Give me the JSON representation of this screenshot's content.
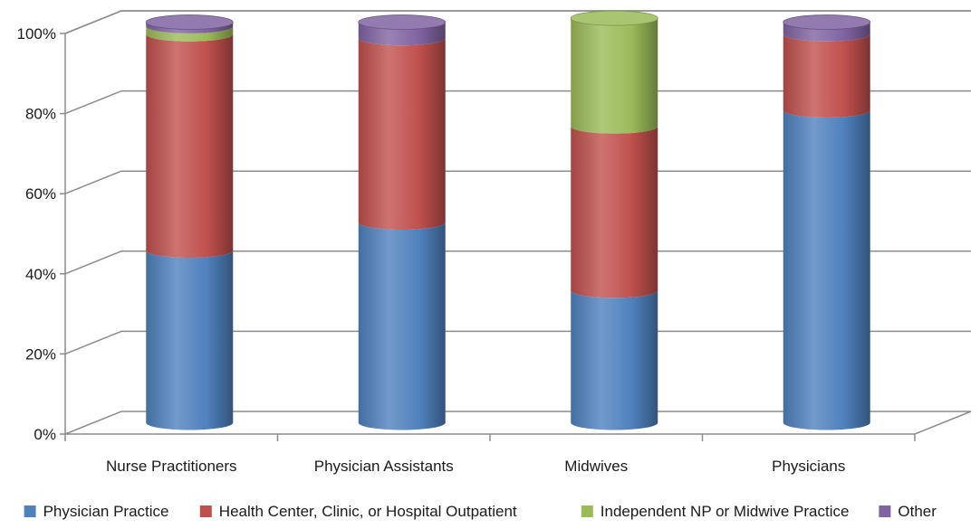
{
  "chart_data": {
    "type": "bar",
    "stacked": true,
    "style": "3d-cylinder",
    "categories": [
      "Nurse Practitioners",
      "Physician Assistants",
      "Midwives",
      "Physicians"
    ],
    "series": [
      {
        "name": "Physician Practice",
        "color": "#4f81bd",
        "values": [
          43,
          50,
          33,
          78
        ]
      },
      {
        "name": "Health Center, Clinic, or Hospital Outpatient",
        "color": "#c0504d",
        "values": [
          54,
          46,
          41,
          19
        ]
      },
      {
        "name": "Independent NP or Midwive Practice",
        "color": "#9bbb59",
        "values": [
          2,
          0,
          27,
          0
        ]
      },
      {
        "name": "Other",
        "color": "#8064a2",
        "values": [
          1,
          4,
          0,
          3
        ]
      }
    ],
    "ylim": [
      0,
      100
    ],
    "yticks": [
      "0%",
      "20%",
      "40%",
      "60%",
      "80%",
      "100%"
    ],
    "grid": true,
    "legend_position": "bottom"
  }
}
